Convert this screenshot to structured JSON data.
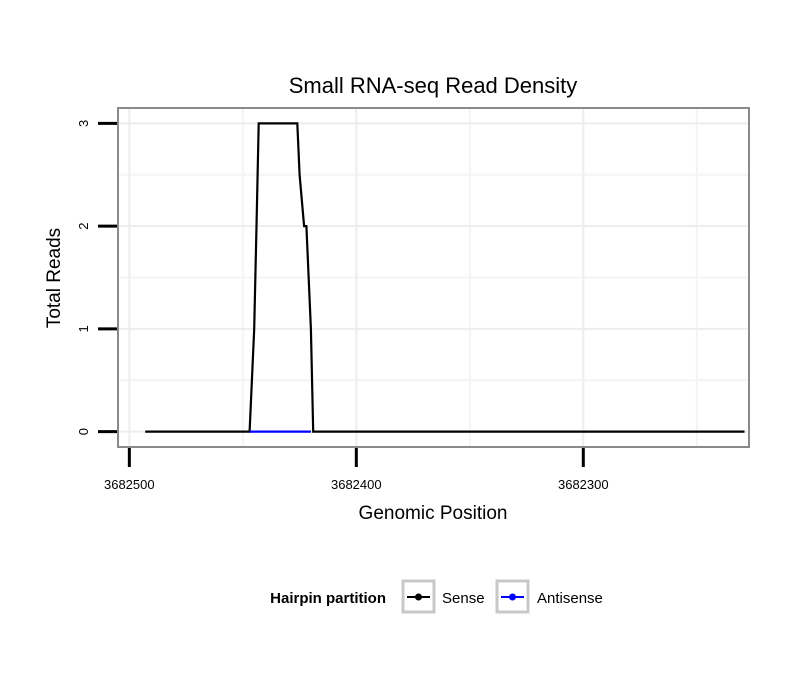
{
  "chart_data": {
    "type": "line",
    "title": "Small RNA-seq Read Density",
    "xlabel": "Genomic Position",
    "ylabel": "Total Reads",
    "xlim": [
      3682505,
      3682227
    ],
    "x_reversed": true,
    "ylim": [
      -0.15,
      3.15
    ],
    "x_ticks": [
      3682500,
      3682400,
      3682300
    ],
    "x_tick_labels": [
      "3682500",
      "3682400",
      "3682300"
    ],
    "y_ticks": [
      0,
      1,
      2,
      3
    ],
    "y_tick_labels": [
      "0",
      "1",
      "2",
      "3"
    ],
    "grid": true,
    "legend": {
      "title": "Hairpin partition",
      "position": "bottom"
    },
    "series": [
      {
        "name": "Sense",
        "color": "#000000",
        "x": [
          3682493,
          3682447,
          3682445,
          3682444,
          3682443,
          3682426,
          3682425,
          3682423,
          3682422,
          3682420,
          3682419,
          3682417,
          3682229
        ],
        "y": [
          0,
          0,
          1,
          2,
          3,
          3,
          2.5,
          2,
          2,
          1,
          0,
          0,
          0
        ]
      },
      {
        "name": "Antisense",
        "color": "#0000ff",
        "x": [
          3682447,
          3682420
        ],
        "y": [
          0,
          0
        ]
      }
    ]
  }
}
